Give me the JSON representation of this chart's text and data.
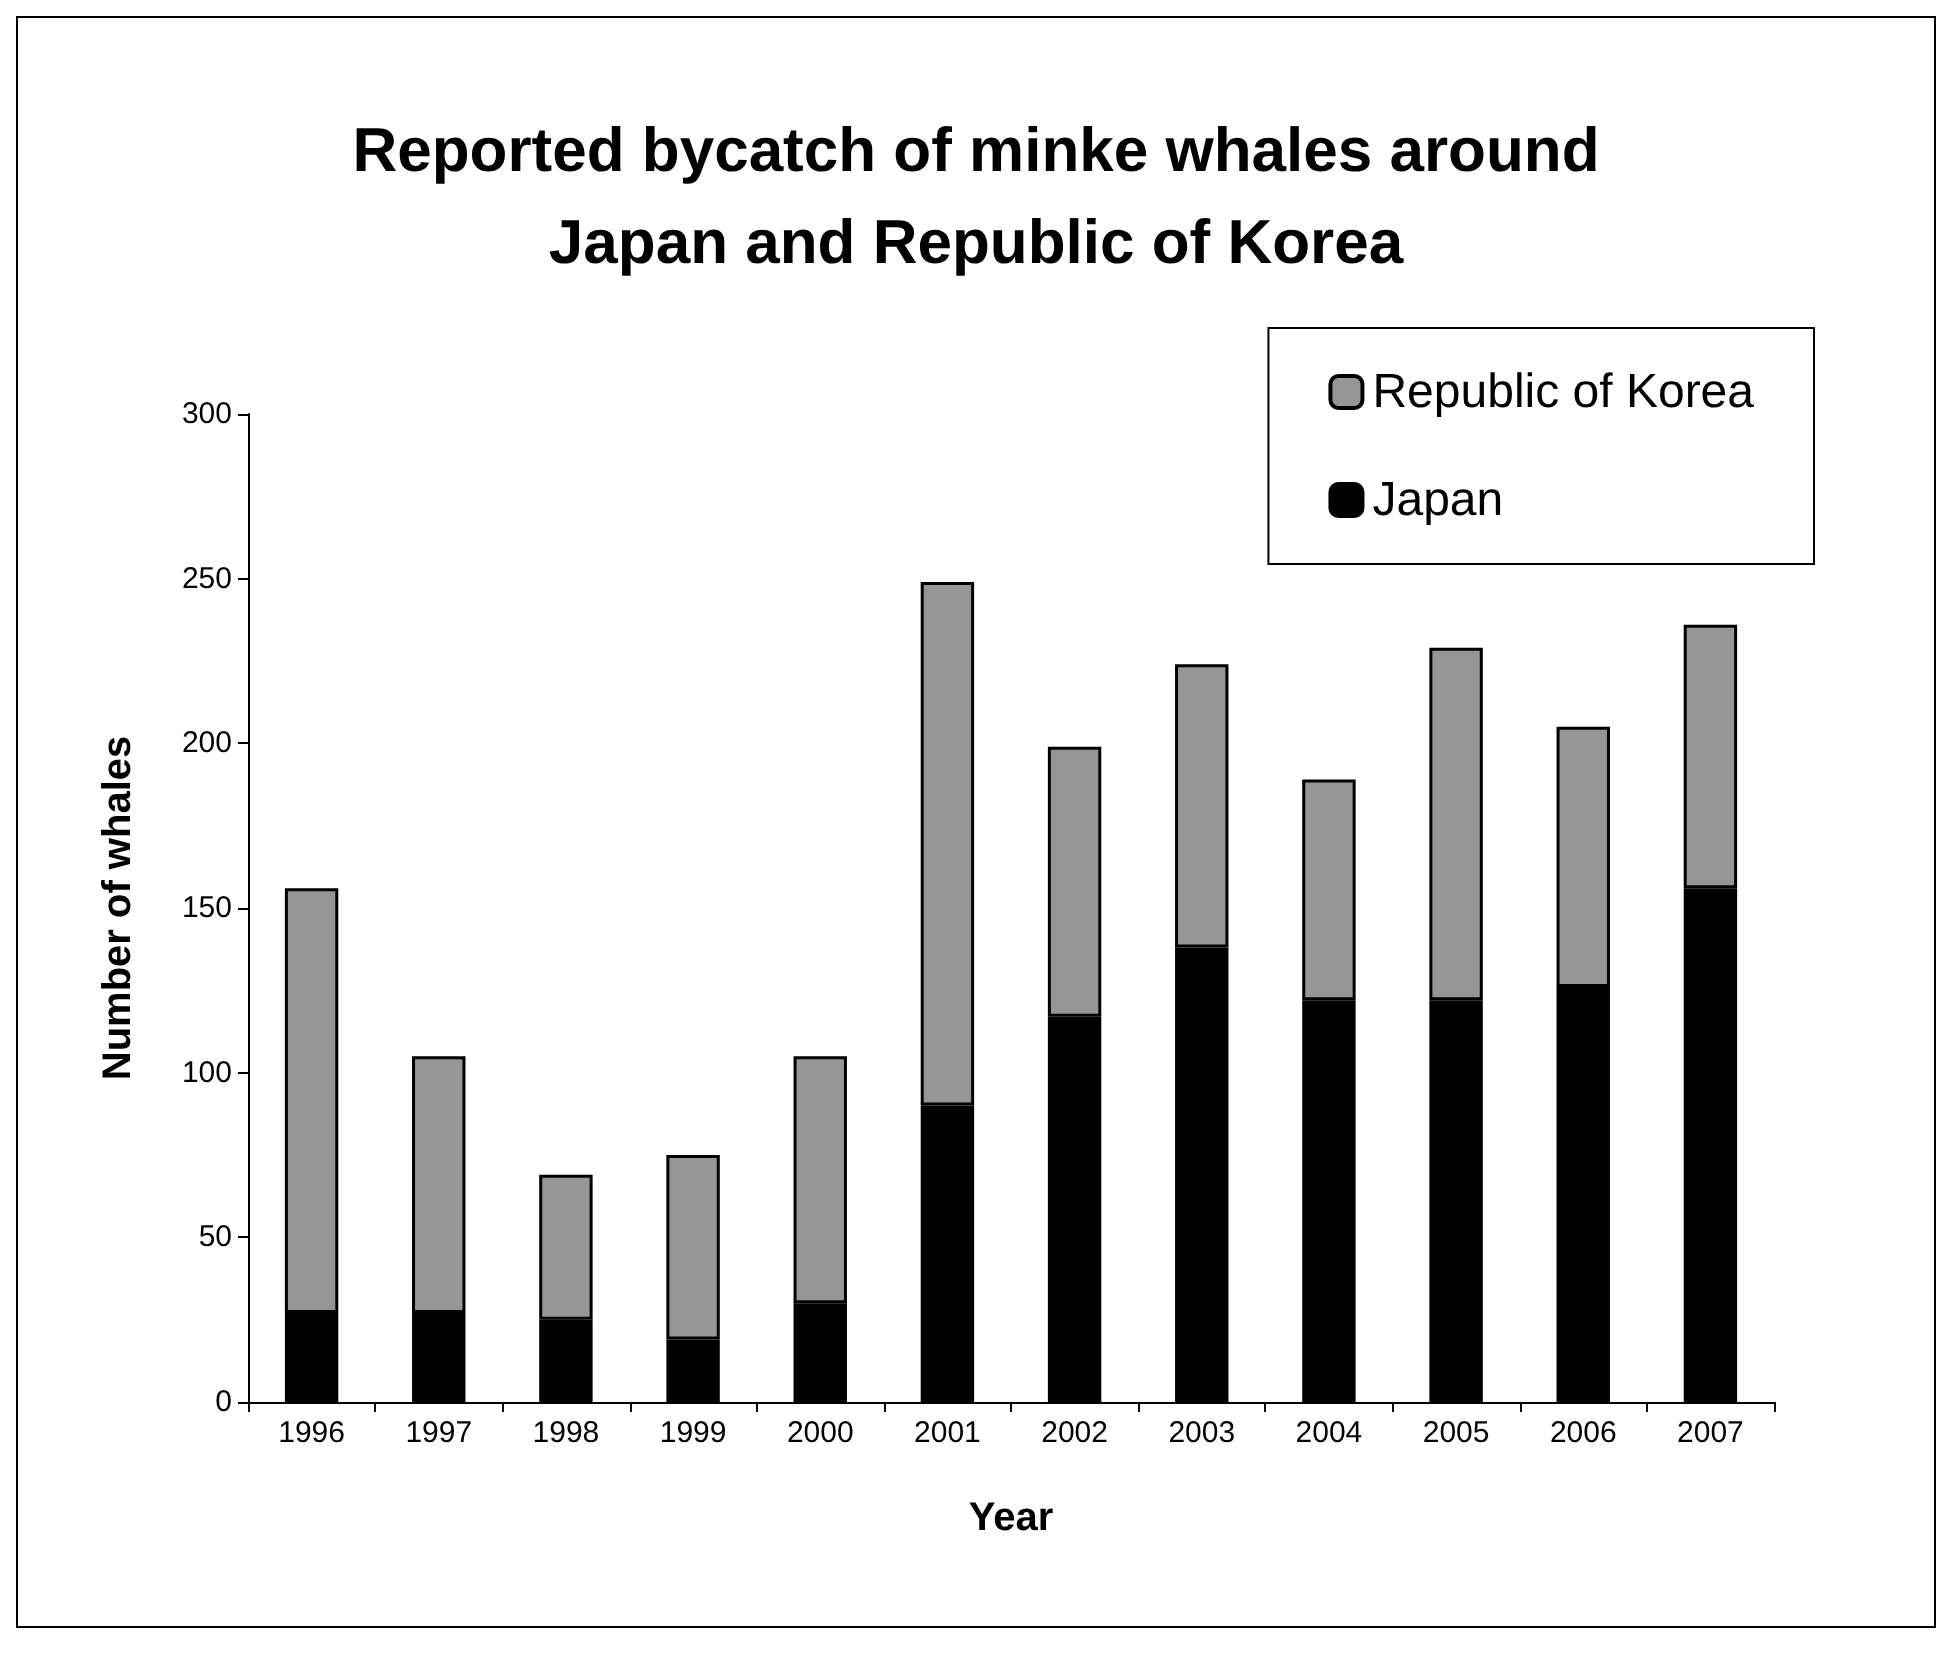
{
  "chart_data": {
    "type": "bar",
    "title": "Reported bycatch of minke whales around\nJapan and Republic of Korea",
    "xlabel": "Year",
    "ylabel": "Number of whales",
    "categories": [
      "1996",
      "1997",
      "1998",
      "1999",
      "2000",
      "2001",
      "2002",
      "2003",
      "2004",
      "2005",
      "2006",
      "2007"
    ],
    "stacked": true,
    "series": [
      {
        "name": "Japan",
        "color": "#000000",
        "values": [
          27,
          27,
          25,
          19,
          30,
          90,
          117,
          138,
          122,
          122,
          126,
          156
        ]
      },
      {
        "name": "Republic of Korea",
        "color": "#969696",
        "values": [
          129,
          78,
          44,
          56,
          75,
          159,
          82,
          86,
          67,
          107,
          79,
          80
        ]
      }
    ],
    "ylim": [
      0,
      300
    ],
    "yticks": [
      0,
      50,
      100,
      150,
      200,
      250,
      300
    ],
    "grid": false,
    "legend": "top right"
  }
}
